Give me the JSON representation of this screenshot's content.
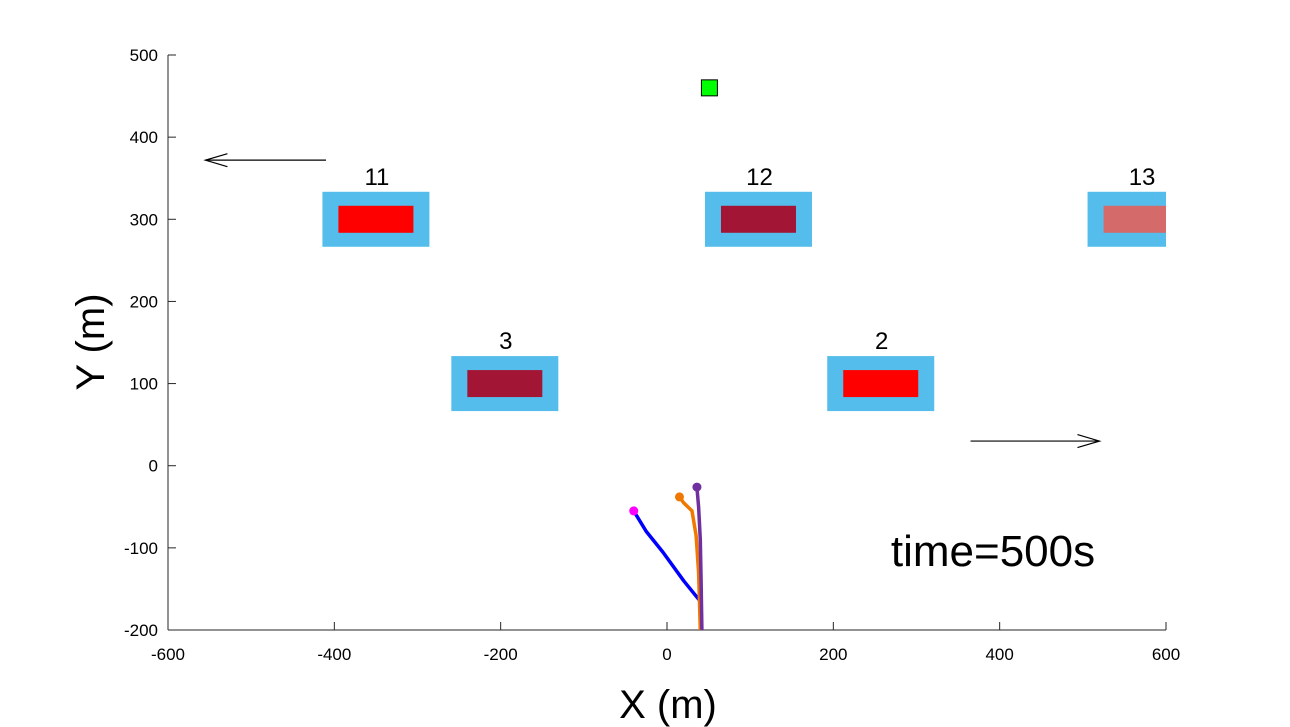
{
  "chart_data": {
    "type": "scatter",
    "title": "",
    "xlabel": "X (m)",
    "ylabel": "Y (m)",
    "xlim": [
      -600,
      600
    ],
    "ylim": [
      -200,
      500
    ],
    "xticks": [
      -600,
      -400,
      -200,
      0,
      200,
      400,
      600
    ],
    "yticks": [
      -200,
      -100,
      0,
      100,
      200,
      300,
      400,
      500
    ],
    "grid": false,
    "annotation": "time=500s",
    "targets": [
      {
        "label": "11",
        "x": -350,
        "y": 300,
        "inner_color": "#ff0000"
      },
      {
        "label": "12",
        "x": 110,
        "y": 300,
        "inner_color": "#a31535"
      },
      {
        "label": "13",
        "x": 570,
        "y": 300,
        "inner_color": "#d46a6a"
      },
      {
        "label": "3",
        "x": -195,
        "y": 100,
        "inner_color": "#a31535"
      },
      {
        "label": "2",
        "x": 257,
        "y": 100,
        "inner_color": "#ff0000"
      }
    ],
    "target_outer_color": "#55bdeb",
    "arrows": [
      {
        "from": [
          -410,
          372
        ],
        "to": [
          -555,
          372
        ]
      },
      {
        "from": [
          365,
          30
        ],
        "to": [
          520,
          30
        ]
      }
    ],
    "goal_marker": {
      "x": 51,
      "y": 460,
      "color": "#00ff00"
    },
    "trajectories": [
      {
        "color": "#0000ff",
        "end_color": "#ff00ff",
        "points": [
          [
            40,
            -200
          ],
          [
            40,
            -165
          ],
          [
            20,
            -140
          ],
          [
            -5,
            -105
          ],
          [
            -25,
            -80
          ],
          [
            -40,
            -55
          ]
        ]
      },
      {
        "color": "#f07800",
        "end_color": "#f07800",
        "points": [
          [
            40,
            -200
          ],
          [
            38,
            -130
          ],
          [
            35,
            -85
          ],
          [
            30,
            -55
          ],
          [
            20,
            -45
          ],
          [
            15,
            -38
          ]
        ]
      },
      {
        "color": "#7030a0",
        "end_color": "#7030a0",
        "points": [
          [
            42,
            -200
          ],
          [
            41,
            -140
          ],
          [
            40,
            -90
          ],
          [
            38,
            -50
          ],
          [
            36,
            -26
          ]
        ]
      }
    ]
  }
}
